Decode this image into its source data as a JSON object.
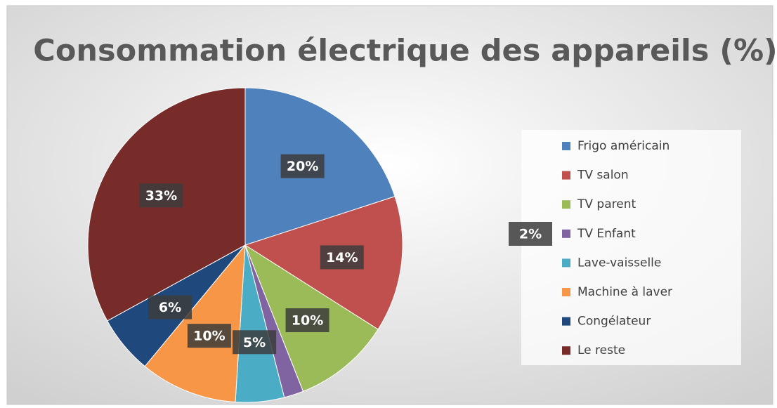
{
  "chart_data": {
    "type": "pie",
    "title": "Consommation électrique des appareils (%)",
    "categories": [
      "Frigo américain",
      "TV salon",
      "TV parent",
      "TV Enfant",
      "Lave-vaisselle",
      "Machine à laver",
      "Congélateur",
      "Le reste"
    ],
    "values": [
      20,
      14,
      10,
      2,
      5,
      10,
      6,
      33
    ],
    "value_labels": [
      "20%",
      "14%",
      "10%",
      "2%",
      "5%",
      "10%",
      "6%",
      "33%"
    ],
    "colors": [
      "#4f81bd",
      "#c0504d",
      "#9bbb59",
      "#8064a2",
      "#4bacc6",
      "#f79646",
      "#1f497d",
      "#772c2a"
    ],
    "legend": "right"
  }
}
